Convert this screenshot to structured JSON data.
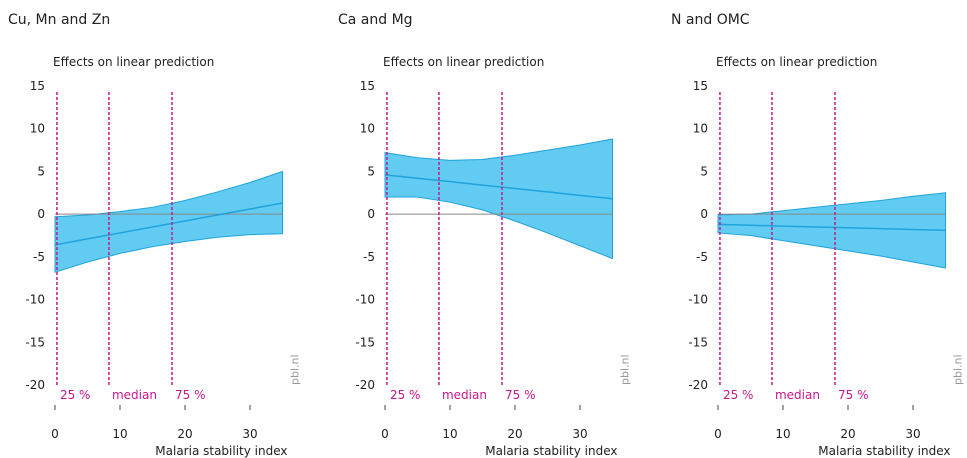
{
  "chart_data": [
    {
      "type": "band-line",
      "title": "Cu, Mn and Zn",
      "subtitle": "Effects on linear prediction",
      "x_label": "Malaria stability index",
      "source": "pbl.nl",
      "x": [
        0,
        5,
        10,
        15,
        20,
        25,
        30,
        35
      ],
      "values": [
        -3.6,
        -2.9,
        -2.2,
        -1.5,
        -0.8,
        -0.1,
        0.6,
        1.3
      ],
      "upper": [
        -0.3,
        -0.1,
        0.3,
        0.8,
        1.6,
        2.6,
        3.7,
        5
      ],
      "lower": [
        -6.8,
        -5.6,
        -4.6,
        -3.8,
        -3.2,
        -2.7,
        -2.4,
        -2.3
      ],
      "color": "#62cbf2",
      "line_color": "#1ea3dc",
      "vlines": [
        {
          "value": 0.3,
          "label": "25 %"
        },
        {
          "value": 8.3,
          "label": "median"
        },
        {
          "value": 18,
          "label": "75 %"
        }
      ],
      "vline_color": "#c8178c",
      "xlim": [
        0,
        35
      ],
      "xticks": [
        0,
        10,
        20,
        30
      ],
      "ylim": [
        -20,
        15
      ],
      "yticks": [
        -20,
        -15,
        -10,
        -5,
        0,
        5,
        10,
        15
      ]
    },
    {
      "type": "band-line",
      "title": "Ca and Mg",
      "subtitle": "Effects on linear prediction",
      "x_label": "Malaria stability index",
      "source": "pbl.nl",
      "x": [
        0,
        5,
        10,
        15,
        20,
        25,
        30,
        35
      ],
      "values": [
        4.6,
        4.2,
        3.8,
        3.4,
        3.0,
        2.6,
        2.2,
        1.8
      ],
      "upper": [
        7.2,
        6.6,
        6.3,
        6.4,
        6.9,
        7.5,
        8.1,
        8.8
      ],
      "lower": [
        2.0,
        2.0,
        1.4,
        0.5,
        -0.8,
        -2.2,
        -3.7,
        -5.2
      ],
      "color": "#62cbf2",
      "line_color": "#1ea3dc",
      "vlines": [
        {
          "value": 0.3,
          "label": "25 %"
        },
        {
          "value": 8.3,
          "label": "median"
        },
        {
          "value": 18,
          "label": "75 %"
        }
      ],
      "vline_color": "#c8178c",
      "xlim": [
        0,
        35
      ],
      "xticks": [
        0,
        10,
        20,
        30
      ],
      "ylim": [
        -20,
        15
      ],
      "yticks": [
        -20,
        -15,
        -10,
        -5,
        0,
        5,
        10,
        15
      ]
    },
    {
      "type": "band-line",
      "title": "N and OMC",
      "subtitle": "Effects on linear prediction",
      "x_label": "Malaria stability index",
      "source": "pbl.nl",
      "x": [
        0,
        5,
        10,
        15,
        20,
        25,
        30,
        35
      ],
      "values": [
        -1.2,
        -1.3,
        -1.4,
        -1.5,
        -1.6,
        -1.7,
        -1.8,
        -1.9
      ],
      "upper": [
        -0.1,
        0.0,
        0.4,
        0.8,
        1.2,
        1.6,
        2.1,
        2.5
      ],
      "lower": [
        -2.2,
        -2.5,
        -3.1,
        -3.7,
        -4.3,
        -4.9,
        -5.6,
        -6.3
      ],
      "color": "#62cbf2",
      "line_color": "#1ea3dc",
      "vlines": [
        {
          "value": 0.3,
          "label": "25 %"
        },
        {
          "value": 8.3,
          "label": "median"
        },
        {
          "value": 18,
          "label": "75 %"
        }
      ],
      "vline_color": "#c8178c",
      "xlim": [
        0,
        35
      ],
      "xticks": [
        0,
        10,
        20,
        30
      ],
      "ylim": [
        -20,
        15
      ],
      "yticks": [
        -20,
        -15,
        -10,
        -5,
        0,
        5,
        10,
        15
      ]
    }
  ]
}
